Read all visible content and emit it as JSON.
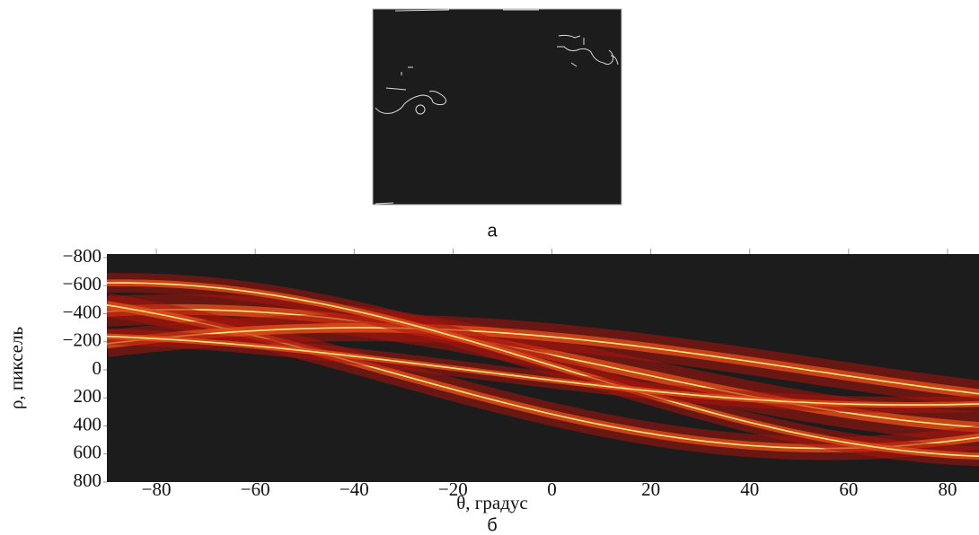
{
  "panel_a": {
    "label": "а"
  },
  "chart_data": {
    "type": "heatmap",
    "subtitle": "б",
    "x_label": "θ, градус",
    "y_label": "ρ, пиксель",
    "xlim": [
      -90,
      86
    ],
    "ylim": [
      -800,
      800
    ],
    "y_inverted": true,
    "xticks": [
      {
        "value": -80,
        "label": "−80"
      },
      {
        "value": -60,
        "label": "−60"
      },
      {
        "value": -40,
        "label": "−40"
      },
      {
        "value": -20,
        "label": "−20"
      },
      0,
      20,
      40,
      60,
      80
    ],
    "yticks": [
      {
        "value": -800,
        "label": "−800"
      },
      {
        "value": -600,
        "label": "−600"
      },
      {
        "value": -400,
        "label": "−400"
      },
      {
        "value": -200,
        "label": "−200"
      },
      0,
      200,
      400,
      600,
      800
    ],
    "background": "#1c1c1c"
  }
}
